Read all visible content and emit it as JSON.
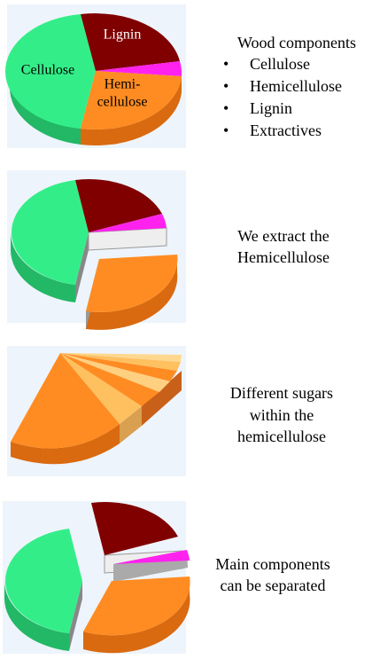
{
  "panels": [
    {
      "pie_labels": [
        "Lignin",
        "Hemi-",
        "cellulose",
        "Cellulose"
      ],
      "heading": "Wood components",
      "bullets": [
        "Cellulose",
        "Hemicellulose",
        "Lignin",
        "Extractives"
      ]
    },
    {
      "caption": [
        "We extract the",
        "Hemicellulose"
      ]
    },
    {
      "caption": [
        "Different sugars",
        "within the",
        "hemicellulose"
      ]
    },
    {
      "caption": [
        "Main components",
        "can be separated"
      ]
    }
  ]
}
